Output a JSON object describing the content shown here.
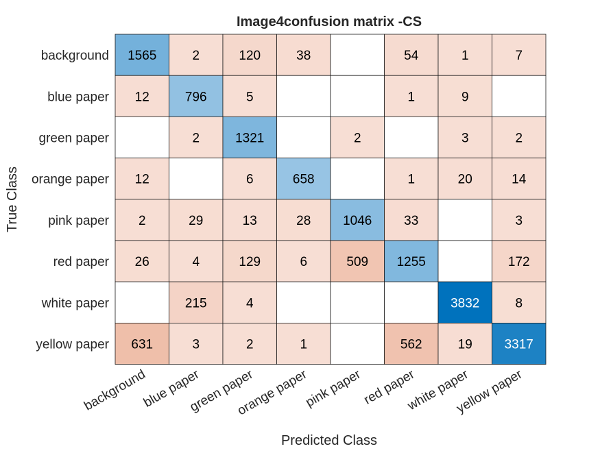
{
  "chart_data": {
    "type": "heatmap",
    "title": "Image4confusion matrix -CS",
    "xlabel": "Predicted Class",
    "ylabel": "True Class",
    "row_labels": [
      "background",
      "blue paper",
      "green paper",
      "orange paper",
      "pink paper",
      "red paper",
      "white paper",
      "yellow paper"
    ],
    "col_labels": [
      "background",
      "blue paper",
      "green paper",
      "orange paper",
      "pink paper",
      "red paper",
      "white paper",
      "yellow paper"
    ],
    "values": [
      [
        1565,
        2,
        120,
        38,
        null,
        54,
        1,
        7
      ],
      [
        12,
        796,
        5,
        null,
        null,
        1,
        9,
        null
      ],
      [
        null,
        2,
        1321,
        null,
        2,
        null,
        3,
        2
      ],
      [
        12,
        null,
        6,
        658,
        null,
        1,
        20,
        14
      ],
      [
        2,
        29,
        13,
        28,
        1046,
        33,
        null,
        3
      ],
      [
        26,
        4,
        129,
        6,
        509,
        1255,
        null,
        172
      ],
      [
        null,
        215,
        4,
        null,
        null,
        null,
        3832,
        8
      ],
      [
        631,
        3,
        2,
        1,
        null,
        562,
        19,
        3317
      ]
    ],
    "colors": {
      "diagonal_light": "#a8cde8",
      "diagonal_dark": "#0072bd",
      "offdiag_light": "#f7ded4",
      "offdiag_dark": "#efbfaa",
      "empty": "#ffffff",
      "grid": "#1a1a1a",
      "text_dark": "#000000",
      "text_light": "#ffffff"
    }
  }
}
